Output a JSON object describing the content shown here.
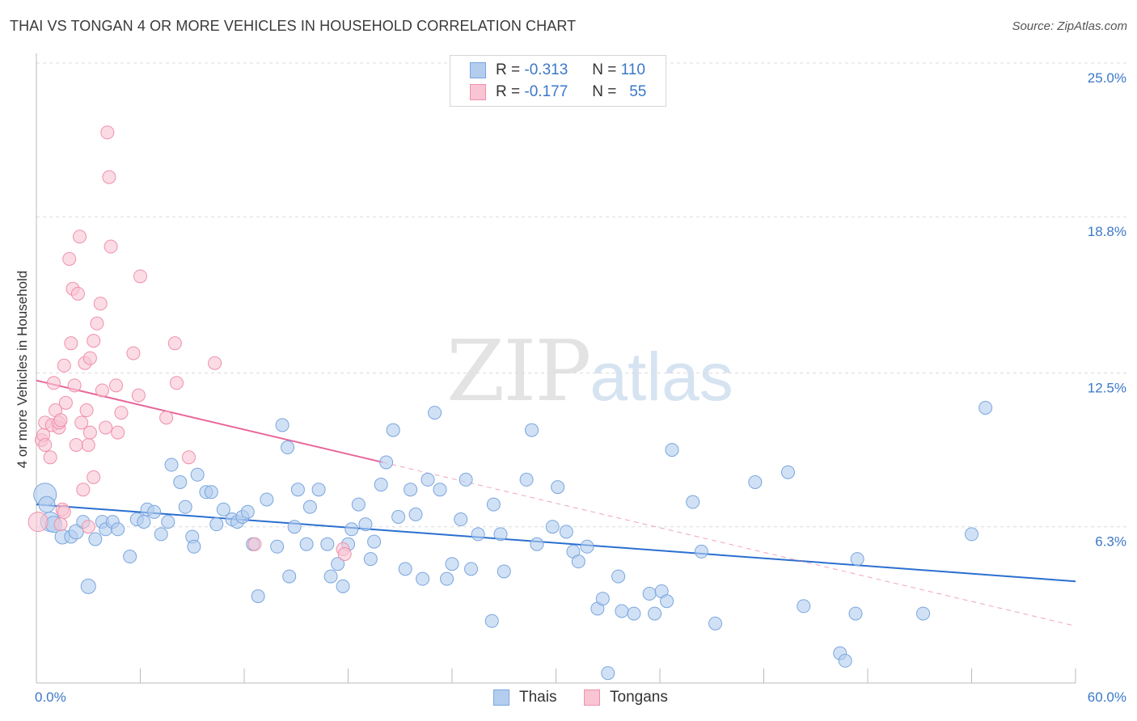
{
  "header": {
    "title": "THAI VS TONGAN 4 OR MORE VEHICLES IN HOUSEHOLD CORRELATION CHART",
    "source": "Source: ZipAtlas.com"
  },
  "watermark": {
    "zip": "ZIP",
    "atlas": "atlas"
  },
  "legend": {
    "rows": [
      {
        "r_label": "R =",
        "r_value": "-0.313",
        "n_label": "N =",
        "n_value": "110",
        "fill": "#b3cdef",
        "stroke": "#7aa6de"
      },
      {
        "r_label": "R =",
        "r_value": "-0.177",
        "n_label": "N =",
        "n_value": "55",
        "fill": "#f9c5d4",
        "stroke": "#ef90ab"
      }
    ]
  },
  "bottom_legend": {
    "thais": "Thais",
    "tongans": "Tongans"
  },
  "chart_data": {
    "type": "scatter",
    "ylabel": "4 or more Vehicles in Household",
    "xlim": [
      0,
      60
    ],
    "ylim": [
      0,
      25
    ],
    "x_tick_labels": [
      "0.0%",
      "60.0%"
    ],
    "y_ticks": [
      {
        "value": 6.3,
        "label": "6.3%"
      },
      {
        "value": 12.5,
        "label": "12.5%"
      },
      {
        "value": 18.8,
        "label": "18.8%"
      },
      {
        "value": 25.0,
        "label": "25.0%"
      }
    ],
    "grid": true,
    "series": [
      {
        "name": "Thais",
        "color": "#7aa6de",
        "fill": "#b3cdef",
        "line_color": "#2a6fd0",
        "trend": {
          "x": [
            0,
            60
          ],
          "y": [
            7.2,
            4.1
          ]
        },
        "points": [
          [
            0.5,
            7.6,
            14
          ],
          [
            0.6,
            7.2,
            10
          ],
          [
            0.8,
            6.5,
            12
          ],
          [
            1.0,
            6.4,
            10
          ],
          [
            1.5,
            5.9,
            9
          ],
          [
            2.0,
            5.9,
            8
          ],
          [
            2.3,
            6.1,
            9
          ],
          [
            2.7,
            6.5,
            8
          ],
          [
            3.0,
            3.9,
            9
          ],
          [
            3.4,
            5.8,
            8
          ],
          [
            3.8,
            6.5,
            8
          ],
          [
            4.0,
            6.2,
            8
          ],
          [
            4.4,
            6.5,
            8
          ],
          [
            4.7,
            6.2,
            8
          ],
          [
            5.4,
            5.1,
            8
          ],
          [
            5.8,
            6.6,
            8
          ],
          [
            6.2,
            6.5,
            8
          ],
          [
            6.4,
            7.0,
            8
          ],
          [
            6.8,
            6.9,
            8
          ],
          [
            7.2,
            6.0,
            8
          ],
          [
            7.6,
            6.5,
            8
          ],
          [
            7.8,
            8.8,
            8
          ],
          [
            8.3,
            8.1,
            8
          ],
          [
            8.6,
            7.1,
            8
          ],
          [
            9.0,
            5.9,
            8
          ],
          [
            9.3,
            8.4,
            8
          ],
          [
            9.8,
            7.7,
            8
          ],
          [
            10.1,
            7.7,
            8
          ],
          [
            10.4,
            6.4,
            8
          ],
          [
            10.8,
            7.0,
            8
          ],
          [
            11.3,
            6.6,
            8
          ],
          [
            11.6,
            6.5,
            8
          ],
          [
            11.9,
            6.7,
            8
          ],
          [
            12.2,
            6.9,
            8
          ],
          [
            12.5,
            5.6,
            8
          ],
          [
            12.8,
            3.5,
            8
          ],
          [
            13.3,
            7.4,
            8
          ],
          [
            13.9,
            5.5,
            8
          ],
          [
            14.2,
            10.4,
            8
          ],
          [
            14.5,
            9.5,
            8
          ],
          [
            14.9,
            6.3,
            8
          ],
          [
            15.1,
            7.8,
            8
          ],
          [
            15.6,
            5.6,
            8
          ],
          [
            15.8,
            7.1,
            8
          ],
          [
            16.3,
            7.8,
            8
          ],
          [
            16.8,
            5.6,
            8
          ],
          [
            17.0,
            4.3,
            8
          ],
          [
            17.4,
            4.8,
            8
          ],
          [
            17.7,
            3.9,
            8
          ],
          [
            18.0,
            5.6,
            8
          ],
          [
            18.2,
            6.2,
            8
          ],
          [
            18.6,
            7.2,
            8
          ],
          [
            19.0,
            6.4,
            8
          ],
          [
            19.3,
            5.0,
            8
          ],
          [
            19.5,
            5.7,
            8
          ],
          [
            19.9,
            8.0,
            8
          ],
          [
            20.2,
            8.9,
            8
          ],
          [
            20.6,
            10.2,
            8
          ],
          [
            20.9,
            6.7,
            8
          ],
          [
            21.3,
            4.6,
            8
          ],
          [
            21.6,
            7.8,
            8
          ],
          [
            21.9,
            6.8,
            8
          ],
          [
            22.3,
            4.2,
            8
          ],
          [
            22.6,
            8.2,
            8
          ],
          [
            23.0,
            10.9,
            8
          ],
          [
            23.3,
            7.8,
            8
          ],
          [
            23.7,
            4.2,
            8
          ],
          [
            24.0,
            4.8,
            8
          ],
          [
            24.5,
            6.6,
            8
          ],
          [
            24.8,
            8.2,
            8
          ],
          [
            25.1,
            4.6,
            8
          ],
          [
            25.5,
            6.0,
            8
          ],
          [
            26.3,
            2.5,
            8
          ],
          [
            26.4,
            7.2,
            8
          ],
          [
            26.8,
            6.0,
            8
          ],
          [
            27.0,
            4.5,
            8
          ],
          [
            28.3,
            8.2,
            8
          ],
          [
            28.6,
            10.2,
            8
          ],
          [
            28.9,
            5.6,
            8
          ],
          [
            29.8,
            6.3,
            8
          ],
          [
            30.1,
            7.9,
            8
          ],
          [
            30.6,
            6.1,
            8
          ],
          [
            31.0,
            5.3,
            8
          ],
          [
            31.3,
            4.9,
            8
          ],
          [
            31.8,
            5.5,
            8
          ],
          [
            32.4,
            3.0,
            8
          ],
          [
            32.7,
            3.4,
            8
          ],
          [
            33.6,
            4.3,
            8
          ],
          [
            33.8,
            2.9,
            8
          ],
          [
            34.5,
            2.8,
            8
          ],
          [
            35.4,
            3.6,
            8
          ],
          [
            35.7,
            2.8,
            8
          ],
          [
            36.1,
            3.7,
            8
          ],
          [
            36.4,
            3.3,
            8
          ],
          [
            36.7,
            9.4,
            8
          ],
          [
            37.9,
            7.3,
            8
          ],
          [
            39.2,
            2.4,
            8
          ],
          [
            41.5,
            8.1,
            8
          ],
          [
            43.4,
            8.5,
            8
          ],
          [
            44.3,
            3.1,
            8
          ],
          [
            46.4,
            1.2,
            8
          ],
          [
            46.7,
            0.9,
            8
          ],
          [
            47.3,
            2.8,
            8
          ],
          [
            47.4,
            5.0,
            8
          ],
          [
            51.2,
            2.8,
            8
          ],
          [
            54.0,
            6.0,
            8
          ],
          [
            54.8,
            11.1,
            8
          ],
          [
            33.0,
            0.4,
            8
          ],
          [
            38.4,
            5.3,
            8
          ],
          [
            14.6,
            4.3,
            8
          ],
          [
            9.1,
            5.5,
            8
          ]
        ]
      },
      {
        "name": "Tongans",
        "color": "#ef90ab",
        "fill": "#f9c5d4",
        "line_color": "#e8669a",
        "trend": {
          "x": [
            0,
            20
          ],
          "y": [
            12.2,
            8.9
          ]
        },
        "trend_ext": {
          "x": [
            20,
            60
          ],
          "y": [
            8.9,
            2.3
          ]
        },
        "points": [
          [
            0.1,
            6.5,
            12
          ],
          [
            0.3,
            9.8,
            8
          ],
          [
            0.4,
            10.0,
            8
          ],
          [
            0.5,
            10.5,
            8
          ],
          [
            0.5,
            9.6,
            8
          ],
          [
            0.8,
            9.1,
            8
          ],
          [
            0.9,
            10.4,
            8
          ],
          [
            1.0,
            12.1,
            8
          ],
          [
            1.1,
            11.0,
            8
          ],
          [
            1.3,
            10.3,
            8
          ],
          [
            1.3,
            10.5,
            8
          ],
          [
            1.4,
            10.6,
            8
          ],
          [
            1.5,
            7.0,
            8
          ],
          [
            1.4,
            6.4,
            8
          ],
          [
            1.6,
            12.8,
            8
          ],
          [
            1.7,
            11.3,
            8
          ],
          [
            1.9,
            17.1,
            8
          ],
          [
            2.0,
            13.7,
            8
          ],
          [
            2.1,
            15.9,
            8
          ],
          [
            2.2,
            12.0,
            8
          ],
          [
            2.3,
            9.6,
            8
          ],
          [
            2.4,
            15.7,
            8
          ],
          [
            2.5,
            18.0,
            8
          ],
          [
            2.6,
            10.5,
            8
          ],
          [
            2.7,
            7.8,
            8
          ],
          [
            2.8,
            12.9,
            8
          ],
          [
            2.9,
            11.0,
            8
          ],
          [
            3.0,
            9.6,
            8
          ],
          [
            3.1,
            13.1,
            8
          ],
          [
            3.1,
            10.1,
            8
          ],
          [
            3.3,
            8.3,
            8
          ],
          [
            3.3,
            13.8,
            8
          ],
          [
            3.5,
            14.5,
            8
          ],
          [
            3.7,
            15.3,
            8
          ],
          [
            3.8,
            11.8,
            8
          ],
          [
            4.0,
            10.3,
            8
          ],
          [
            4.1,
            22.2,
            8
          ],
          [
            4.2,
            20.4,
            8
          ],
          [
            4.3,
            17.6,
            8
          ],
          [
            4.6,
            12.0,
            8
          ],
          [
            4.7,
            10.1,
            8
          ],
          [
            4.9,
            10.9,
            8
          ],
          [
            5.6,
            13.3,
            8
          ],
          [
            5.9,
            11.6,
            8
          ],
          [
            6.0,
            16.4,
            8
          ],
          [
            7.5,
            10.7,
            8
          ],
          [
            8.0,
            13.7,
            8
          ],
          [
            8.1,
            12.1,
            8
          ],
          [
            8.8,
            9.1,
            8
          ],
          [
            10.3,
            12.9,
            8
          ],
          [
            12.6,
            5.6,
            8
          ],
          [
            17.7,
            5.4,
            8
          ],
          [
            17.8,
            5.2,
            8
          ],
          [
            3.0,
            6.3,
            8
          ],
          [
            1.6,
            6.9,
            8
          ]
        ]
      }
    ]
  }
}
